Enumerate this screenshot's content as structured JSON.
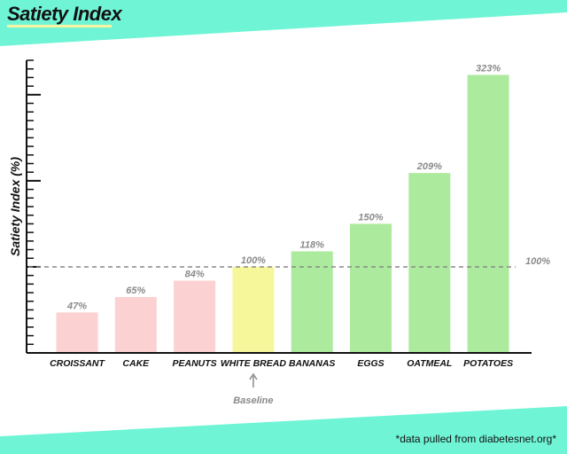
{
  "colors": {
    "accent_mint": "#6ff5d6",
    "below_baseline": "#fcd1d1",
    "baseline": "#f6f79b",
    "above_baseline": "#acea9d",
    "grey_text": "#8a8a8a"
  },
  "footnote": "*data pulled from diabetesnet.org*",
  "chart_data": {
    "type": "bar",
    "title": "Satiety Index",
    "xlabel": "",
    "ylabel": "Satiety Index (%)",
    "ylim": [
      0,
      340
    ],
    "grid": false,
    "categories": [
      "CROISSANT",
      "CAKE",
      "PEANUTS",
      "WHITE BREAD",
      "BANANAS",
      "EGGS",
      "OATMEAL",
      "POTATOES"
    ],
    "values": [
      47,
      65,
      84,
      100,
      118,
      150,
      209,
      323
    ],
    "value_labels": [
      "47%",
      "65%",
      "84%",
      "100%",
      "118%",
      "150%",
      "209%",
      "323%"
    ],
    "groups": [
      "below",
      "below",
      "below",
      "baseline",
      "above",
      "above",
      "above",
      "above"
    ],
    "reference_line": {
      "value": 100,
      "label": "100%"
    },
    "annotation": {
      "category": "WHITE BREAD",
      "text": "Baseline",
      "arrow": "↑"
    }
  }
}
